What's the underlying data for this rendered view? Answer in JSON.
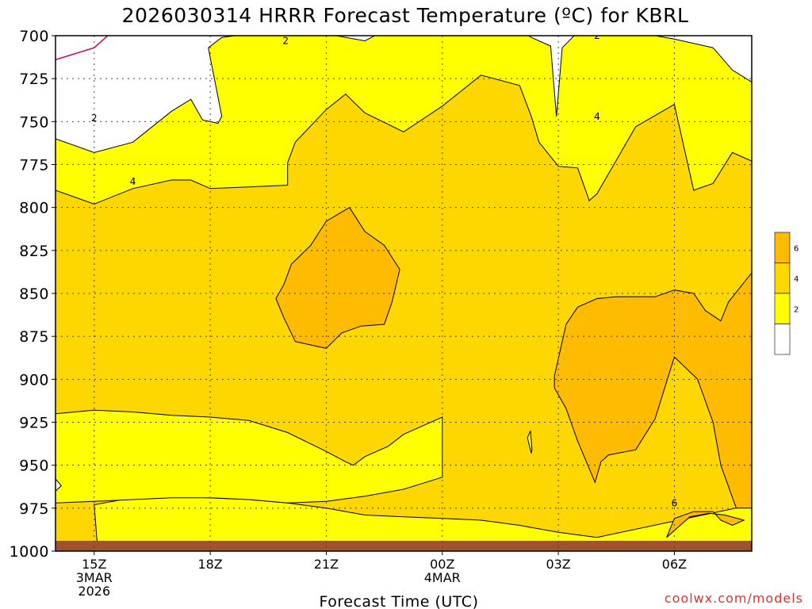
{
  "chart_data": {
    "type": "contour",
    "title": "2026030314 HRRR Forecast Temperature (ºC) for KBRL",
    "xlabel": "Forecast Time (UTC)",
    "ylabel": "",
    "credit": "coolwx.com/models",
    "x_unit": "hour (UTC), 3 Mar 2026 start",
    "xlim": [
      14,
      32
    ],
    "ylim": [
      1000,
      700
    ],
    "y_ticks": [
      700,
      725,
      750,
      775,
      800,
      825,
      850,
      875,
      900,
      925,
      950,
      975,
      1000
    ],
    "x_ticks": [
      {
        "hour": 15,
        "lines": [
          "15Z",
          "3MAR",
          "2026"
        ]
      },
      {
        "hour": 18,
        "lines": [
          "18Z"
        ]
      },
      {
        "hour": 21,
        "lines": [
          "21Z"
        ]
      },
      {
        "hour": 24,
        "lines": [
          "00Z",
          "4MAR"
        ]
      },
      {
        "hour": 27,
        "lines": [
          "03Z"
        ]
      },
      {
        "hour": 30,
        "lines": [
          "06Z"
        ]
      }
    ],
    "grid": true,
    "contour_levels": [
      2,
      4,
      6
    ],
    "fill_colors": {
      "below_2": "#ffffff",
      "2_4": "#ffff00",
      "4_6": "#ffd700",
      "above_6": "#ffbb00",
      "ground": "#a0522d",
      "zero_line": "#cc0066"
    },
    "colorbar": {
      "ticks": [
        "2",
        "4",
        "6"
      ]
    },
    "contour_labels": [
      {
        "text": "2",
        "hour": 19.95,
        "p": 703
      },
      {
        "text": "2",
        "hour": 15.0,
        "p": 748
      },
      {
        "text": "2",
        "hour": 28.0,
        "p": 700
      },
      {
        "text": "4",
        "hour": 16.0,
        "p": 785
      },
      {
        "text": "4",
        "hour": 28.0,
        "p": 747
      },
      {
        "text": "6",
        "hour": 30.0,
        "p": 972
      }
    ],
    "regions": {
      "gt2": [
        [
          14,
          760
        ],
        [
          15,
          768
        ],
        [
          16,
          762
        ],
        [
          17,
          744
        ],
        [
          17.5,
          737
        ],
        [
          17.8,
          749
        ],
        [
          18.2,
          751
        ],
        [
          18.3,
          747
        ],
        [
          17.95,
          707
        ],
        [
          18.3,
          701
        ],
        [
          19,
          699
        ],
        [
          20,
          696
        ],
        [
          21,
          699
        ],
        [
          22,
          703
        ],
        [
          22.6,
          696
        ],
        [
          23,
          697
        ],
        [
          24,
          697
        ],
        [
          25,
          697
        ],
        [
          26,
          697
        ],
        [
          26.3,
          701
        ],
        [
          26.8,
          706
        ],
        [
          26.95,
          747
        ],
        [
          27.1,
          707
        ],
        [
          27.5,
          698
        ],
        [
          28,
          700
        ],
        [
          29,
          698
        ],
        [
          30,
          702
        ],
        [
          31,
          707
        ],
        [
          31.5,
          720
        ],
        [
          32,
          727
        ],
        [
          32,
          1000
        ],
        [
          14,
          1000
        ]
      ],
      "gt4": [
        [
          14,
          790
        ],
        [
          15,
          798
        ],
        [
          16,
          789
        ],
        [
          17,
          784
        ],
        [
          17.5,
          784
        ],
        [
          18,
          789
        ],
        [
          19,
          788
        ],
        [
          20,
          787
        ],
        [
          20,
          774
        ],
        [
          20.2,
          762
        ],
        [
          21,
          743
        ],
        [
          21.5,
          734
        ],
        [
          22,
          745
        ],
        [
          23,
          756
        ],
        [
          24,
          741
        ],
        [
          25,
          723
        ],
        [
          26,
          729
        ],
        [
          26.3,
          747
        ],
        [
          26.5,
          762
        ],
        [
          27,
          776
        ],
        [
          27.5,
          777
        ],
        [
          27.8,
          796
        ],
        [
          28,
          792
        ],
        [
          29,
          753
        ],
        [
          30,
          740
        ],
        [
          30.5,
          790
        ],
        [
          31,
          786
        ],
        [
          31.5,
          768
        ],
        [
          32,
          773
        ],
        [
          32,
          973
        ],
        [
          28,
          992
        ],
        [
          27,
          989
        ],
        [
          26,
          985
        ],
        [
          25,
          982
        ],
        [
          24,
          981
        ],
        [
          23,
          980
        ],
        [
          22,
          979
        ],
        [
          21,
          975
        ],
        [
          20,
          972
        ],
        [
          19,
          970
        ],
        [
          17,
          968
        ],
        [
          16,
          969
        ],
        [
          15,
          973
        ],
        [
          15.1,
          1002
        ],
        [
          14,
          1002
        ]
      ],
      "lt4_a": [
        [
          14,
          920
        ],
        [
          15,
          918
        ],
        [
          16,
          919
        ],
        [
          17,
          921
        ],
        [
          18,
          922
        ],
        [
          19,
          924
        ],
        [
          20,
          931
        ],
        [
          21,
          942
        ],
        [
          21.5,
          948
        ],
        [
          21.7,
          950
        ],
        [
          22,
          945
        ],
        [
          22.6,
          939
        ],
        [
          23,
          932
        ],
        [
          23.6,
          926
        ],
        [
          24,
          922
        ],
        [
          24,
          957
        ],
        [
          23,
          964
        ],
        [
          22,
          968
        ],
        [
          21,
          971
        ],
        [
          20,
          972
        ],
        [
          19,
          970
        ],
        [
          18,
          969
        ],
        [
          17,
          969
        ],
        [
          16,
          970
        ],
        [
          15,
          971
        ],
        [
          14,
          972
        ]
      ],
      "lt4_b": [
        [
          26.2,
          934
        ],
        [
          26.3,
          943
        ],
        [
          26.32,
          941
        ],
        [
          26.28,
          930
        ]
      ],
      "gt6_a": [
        [
          19.9,
          845
        ],
        [
          20.1,
          833
        ],
        [
          20.6,
          822
        ],
        [
          21,
          808
        ],
        [
          21.6,
          800
        ],
        [
          22,
          814
        ],
        [
          22.5,
          822
        ],
        [
          22.9,
          836
        ],
        [
          22.7,
          855
        ],
        [
          22.5,
          868
        ],
        [
          21.9,
          869
        ],
        [
          21.4,
          873
        ],
        [
          21,
          882
        ],
        [
          20.2,
          878
        ],
        [
          19.9,
          864
        ],
        [
          19.7,
          853
        ]
      ],
      "gt6_b": [
        [
          26.9,
          905
        ],
        [
          27.2,
          917
        ],
        [
          27.5,
          936
        ],
        [
          27.95,
          960
        ],
        [
          28.1,
          948
        ],
        [
          28.3,
          944
        ],
        [
          29,
          941
        ],
        [
          29.5,
          923
        ],
        [
          30,
          887
        ],
        [
          30.6,
          900
        ],
        [
          31,
          925
        ],
        [
          31.2,
          950
        ],
        [
          31.6,
          975
        ],
        [
          32,
          975
        ],
        [
          32,
          838
        ],
        [
          31.4,
          855
        ],
        [
          31.2,
          866
        ],
        [
          30.8,
          860
        ],
        [
          30.5,
          850
        ],
        [
          30,
          848
        ],
        [
          29.5,
          852
        ],
        [
          28.5,
          852
        ],
        [
          28,
          853
        ],
        [
          27.5,
          858
        ],
        [
          27.2,
          868
        ],
        [
          26.9,
          898
        ]
      ],
      "gt6_c": [
        [
          29.8,
          992
        ],
        [
          30,
          981
        ],
        [
          30.5,
          977
        ],
        [
          31,
          977
        ],
        [
          31.2,
          982
        ],
        [
          31.5,
          985
        ],
        [
          31.8,
          982
        ],
        [
          31.3,
          979
        ],
        [
          30.9,
          978
        ],
        [
          30.4,
          980
        ],
        [
          30,
          988
        ]
      ]
    }
  }
}
